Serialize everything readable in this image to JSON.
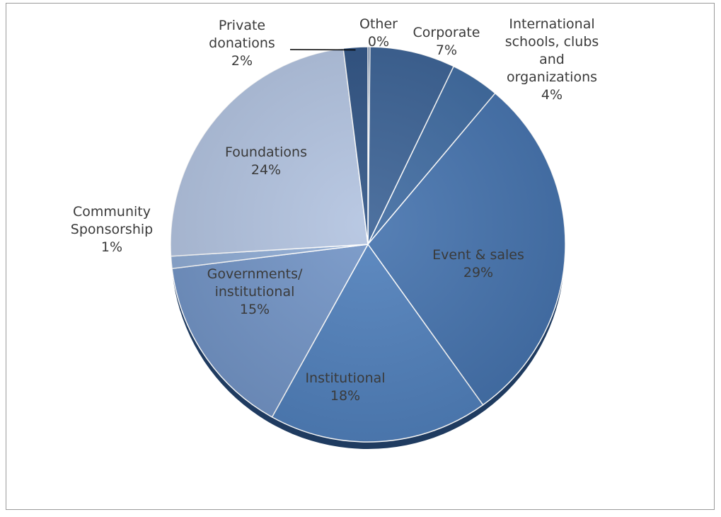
{
  "chart_data": {
    "type": "pie",
    "title": "",
    "start": "top",
    "direction": "clockwise",
    "legend": "none",
    "slices": [
      {
        "label": "Other",
        "value": 0,
        "percent_label": "0%",
        "color": "#2f5384"
      },
      {
        "label": "Corporate",
        "value": 7,
        "percent_label": "7%",
        "color": "#3a6194"
      },
      {
        "label": "International schools, clubs and organizations",
        "value": 4,
        "percent_label": "4%",
        "color": "#3e6aa0"
      },
      {
        "label": "Event & sales",
        "value": 29,
        "percent_label": "29%",
        "color": "#4472ad"
      },
      {
        "label": "Institutional",
        "value": 18,
        "percent_label": "18%",
        "color": "#4f7fbb"
      },
      {
        "label": "Governments/ institutional",
        "value": 15,
        "percent_label": "15%",
        "color": "#7294c6"
      },
      {
        "label": "Community Sponsorship",
        "value": 1,
        "percent_label": "1%",
        "color": "#8eabd4"
      },
      {
        "label": "Foundations",
        "value": 24,
        "percent_label": "24%",
        "color": "#b2c3e0"
      },
      {
        "label": "Private donations",
        "value": 2,
        "percent_label": "2%",
        "color": "#2f5384"
      }
    ]
  }
}
